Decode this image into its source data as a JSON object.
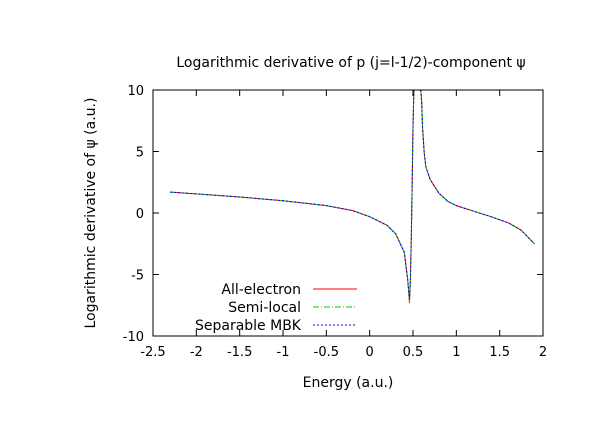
{
  "chart_data": {
    "type": "line",
    "title": "Logarithmic derivative of p (j=l-1/2)-component ψ",
    "xlabel": "Energy (a.u.)",
    "ylabel": "Logarithmic derivative of ψ (a.u.)",
    "xlim": [
      -2.5,
      2
    ],
    "ylim": [
      -10,
      10
    ],
    "xticks": [
      -2.5,
      -2,
      -1.5,
      -1,
      -0.5,
      0,
      0.5,
      1,
      1.5,
      2
    ],
    "xtick_labels": [
      "-2.5",
      "-2",
      "-1.5",
      "-1",
      "-0.5",
      "0",
      "0.5",
      "1",
      "1.5",
      "2"
    ],
    "yticks": [
      -10,
      -5,
      0,
      5,
      10
    ],
    "ytick_labels": [
      "-10",
      "-5",
      "0",
      "5",
      "10"
    ],
    "legend_position": "bottom-left",
    "series": [
      {
        "name": "All-electron",
        "color": "#ff0000",
        "style": "solid",
        "segments": [
          [
            [
              -2.3,
              1.7
            ],
            [
              -2.0,
              1.55
            ],
            [
              -1.5,
              1.3
            ],
            [
              -1.0,
              1.0
            ],
            [
              -0.5,
              0.6
            ],
            [
              -0.2,
              0.2
            ],
            [
              0.0,
              -0.3
            ],
            [
              0.2,
              -1.0
            ],
            [
              0.3,
              -1.7
            ],
            [
              0.4,
              -3.2
            ],
            [
              0.44,
              -5.5
            ],
            [
              0.46,
              -7.3
            ],
            [
              0.47,
              -5.5
            ],
            [
              0.48,
              -2.0
            ],
            [
              0.49,
              2.0
            ],
            [
              0.5,
              7.0
            ],
            [
              0.51,
              10.0
            ]
          ],
          [
            [
              0.59,
              10.0
            ],
            [
              0.6,
              9.0
            ],
            [
              0.61,
              7.0
            ],
            [
              0.63,
              4.8
            ],
            [
              0.65,
              3.7
            ],
            [
              0.7,
              2.7
            ],
            [
              0.8,
              1.6
            ],
            [
              0.9,
              0.95
            ],
            [
              1.0,
              0.6
            ],
            [
              1.2,
              0.15
            ],
            [
              1.4,
              -0.3
            ],
            [
              1.6,
              -0.8
            ],
            [
              1.75,
              -1.4
            ],
            [
              1.9,
              -2.5
            ]
          ]
        ]
      },
      {
        "name": "Semi-local",
        "color": "#00cc00",
        "style": "dash-dot",
        "segments": [
          [
            [
              -2.3,
              1.7
            ],
            [
              -2.0,
              1.55
            ],
            [
              -1.5,
              1.3
            ],
            [
              -1.0,
              1.0
            ],
            [
              -0.5,
              0.6
            ],
            [
              -0.2,
              0.2
            ],
            [
              0.0,
              -0.3
            ],
            [
              0.2,
              -1.0
            ],
            [
              0.3,
              -1.7
            ],
            [
              0.4,
              -3.2
            ],
            [
              0.44,
              -5.5
            ],
            [
              0.46,
              -7.2
            ],
            [
              0.47,
              -5.5
            ],
            [
              0.48,
              -2.0
            ],
            [
              0.49,
              2.0
            ],
            [
              0.5,
              7.0
            ],
            [
              0.51,
              10.0
            ]
          ],
          [
            [
              0.59,
              10.0
            ],
            [
              0.6,
              9.0
            ],
            [
              0.61,
              7.0
            ],
            [
              0.63,
              4.8
            ],
            [
              0.65,
              3.7
            ],
            [
              0.7,
              2.7
            ],
            [
              0.8,
              1.6
            ],
            [
              0.9,
              0.95
            ],
            [
              1.0,
              0.6
            ],
            [
              1.2,
              0.15
            ],
            [
              1.4,
              -0.3
            ],
            [
              1.6,
              -0.8
            ],
            [
              1.75,
              -1.4
            ],
            [
              1.9,
              -2.5
            ]
          ]
        ]
      },
      {
        "name": "Separable MBK",
        "color": "#0000ff",
        "style": "dotted",
        "segments": [
          [
            [
              -2.3,
              1.7
            ],
            [
              -2.0,
              1.55
            ],
            [
              -1.5,
              1.3
            ],
            [
              -1.0,
              1.0
            ],
            [
              -0.5,
              0.6
            ],
            [
              -0.2,
              0.2
            ],
            [
              0.0,
              -0.3
            ],
            [
              0.2,
              -1.0
            ],
            [
              0.3,
              -1.7
            ],
            [
              0.4,
              -3.2
            ],
            [
              0.44,
              -5.5
            ],
            [
              0.46,
              -7.0
            ],
            [
              0.47,
              -5.5
            ],
            [
              0.48,
              -2.0
            ],
            [
              0.49,
              2.0
            ],
            [
              0.5,
              7.0
            ],
            [
              0.51,
              10.0
            ]
          ],
          [
            [
              0.59,
              10.0
            ],
            [
              0.6,
              9.0
            ],
            [
              0.61,
              7.0
            ],
            [
              0.63,
              4.8
            ],
            [
              0.65,
              3.7
            ],
            [
              0.7,
              2.7
            ],
            [
              0.8,
              1.6
            ],
            [
              0.9,
              0.95
            ],
            [
              1.0,
              0.6
            ],
            [
              1.2,
              0.15
            ],
            [
              1.4,
              -0.3
            ],
            [
              1.6,
              -0.8
            ],
            [
              1.75,
              -1.4
            ],
            [
              1.9,
              -2.5
            ]
          ]
        ]
      }
    ]
  }
}
